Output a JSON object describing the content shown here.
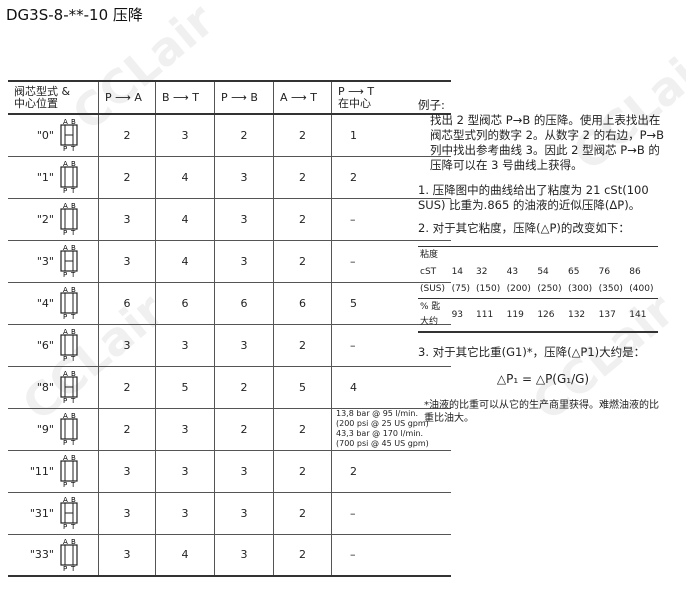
{
  "title": "DG3S-8-**-10 压降",
  "table": {
    "headers": [
      "阀芯型式 &\n中心位置",
      "P ⟶ A",
      "B ⟶ T",
      "P ⟶ B",
      "A ⟶ T",
      "P ⟶ T\n在中心"
    ],
    "rows": [
      {
        "type": "\"0\"",
        "v": [
          "2",
          "3",
          "2",
          "2",
          "1"
        ]
      },
      {
        "type": "\"1\"",
        "v": [
          "2",
          "4",
          "3",
          "2",
          "2"
        ]
      },
      {
        "type": "\"2\"",
        "v": [
          "3",
          "4",
          "3",
          "2",
          "–"
        ]
      },
      {
        "type": "\"3\"",
        "v": [
          "3",
          "4",
          "3",
          "2",
          "–"
        ]
      },
      {
        "type": "\"4\"",
        "v": [
          "6",
          "6",
          "6",
          "6",
          "5"
        ]
      },
      {
        "type": "\"6\"",
        "v": [
          "3",
          "3",
          "3",
          "2",
          "–"
        ]
      },
      {
        "type": "\"8\"",
        "v": [
          "2",
          "5",
          "2",
          "5",
          "4"
        ]
      },
      {
        "type": "\"9\"",
        "v": [
          "2",
          "3",
          "2",
          "2",
          "13,8 bar @  95 l/min.\n(200 psi @  25 US gpm)\n43,3 bar @  170 l/min.\n(700 psi @  45 US gpm)"
        ]
      },
      {
        "type": "\"11\"",
        "v": [
          "3",
          "3",
          "3",
          "2",
          "2"
        ]
      },
      {
        "type": "\"31\"",
        "v": [
          "3",
          "3",
          "3",
          "2",
          "–"
        ]
      },
      {
        "type": "\"33\"",
        "v": [
          "3",
          "4",
          "3",
          "2",
          "–"
        ]
      }
    ],
    "port_labels": {
      "a": "A",
      "b": "B",
      "p": "P",
      "t": "T"
    }
  },
  "right": {
    "example_title": "例子:",
    "example_text": "找出 2 型阀芯 P→B 的压降。使用上表找出在阀芯型式列的数字 2。从数字 2 的右边，P→B 列中找出参考曲线 3。因此 2 型阀芯 P→B 的压降可以在 3 号曲线上获得。",
    "item1": "1. 压降图中的曲线给出了粘度为 21 cSt(100 SUS) 比重为.865 的油液的近似压降(ΔP)。",
    "item2": "2. 对于其它粘度，压降(△P)的改变如下：",
    "visc": {
      "label1": "粘度",
      "cst_label": "cST",
      "sus_label": "(SUS)",
      "cst": [
        "14",
        "32",
        "43",
        "54",
        "65",
        "76",
        "86"
      ],
      "sus": [
        "(75)",
        "(150)",
        "(200)",
        "(250)",
        "(300)",
        "(350)",
        "(400)"
      ],
      "pct_label": "% 匙\n大约",
      "pct": [
        "93",
        "111",
        "119",
        "126",
        "132",
        "137",
        "141"
      ]
    },
    "item3": "3. 对于其它比重(G1)*，压降(△P1)大约是：",
    "formula": "△P₁ = △P(G₁/G)",
    "footnote": "*油液的比重可以从它的生产商里获得。难燃油液的比重比油大。"
  },
  "watermark": "CCLair"
}
